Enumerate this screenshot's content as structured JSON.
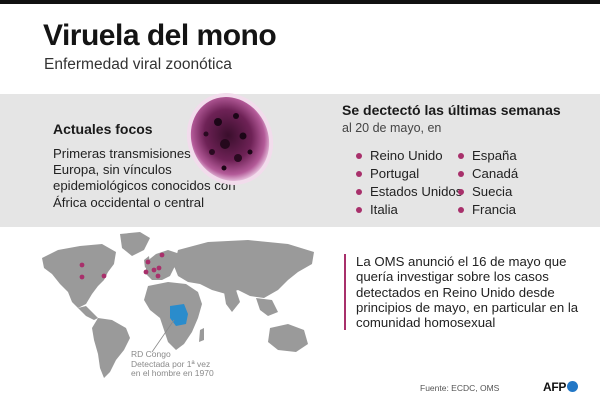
{
  "header": {
    "title": "Viruela del mono",
    "subtitle": "Enfermedad viral zoonótica"
  },
  "focos": {
    "title": "Actuales focos",
    "text": "Primeras transmisiones en Europa, sin vínculos epidemiológicos conocidos con África occidental o central"
  },
  "recent": {
    "title": "Se dectectó las últimas semanas",
    "date": "al 20 de mayo, en",
    "countries_left": [
      "Reino Unido",
      "Portugal",
      "Estados Unidos",
      "Italia"
    ],
    "countries_right": [
      "España",
      "Canadá",
      "Suecia",
      "Francia"
    ]
  },
  "map": {
    "congo_label": "RD Congo",
    "congo_note_1": "Detectada por 1ª vez",
    "congo_note_2": "en el hombre en 1970"
  },
  "oms": {
    "text": "La OMS anunció el 16 de mayo que quería investigar sobre los casos detectados en Reino Unido desde principios de mayo, en particular en la comunidad homosexual"
  },
  "footer": {
    "source": "Fuente: ECDC, OMS",
    "brand": "AFP"
  },
  "colors": {
    "accent": "#a8306b",
    "congo": "#2a8ccc",
    "map_land": "#9a9a9a",
    "band": "#e5e5e5"
  }
}
